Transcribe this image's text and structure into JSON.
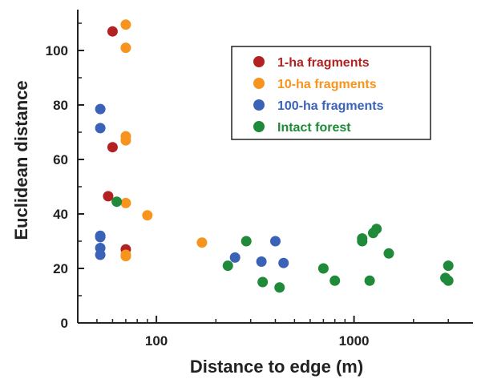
{
  "chart_data": {
    "type": "scatter",
    "title": "",
    "xlabel": "Distance to edge (m)",
    "ylabel": "Euclidean distance",
    "x_scale": "log",
    "xlim": [
      40,
      4000
    ],
    "ylim": [
      0,
      115
    ],
    "x_ticks": [
      100,
      1000
    ],
    "x_tick_labels": [
      "100",
      "1000"
    ],
    "y_ticks": [
      0,
      20,
      40,
      60,
      80,
      100
    ],
    "y_tick_labels": [
      "0",
      "20",
      "40",
      "60",
      "80",
      "100"
    ],
    "grid": false,
    "legend_position": "top-right",
    "series": [
      {
        "name": "1-ha fragments",
        "color": "#b22222",
        "points": [
          [
            60,
            107
          ],
          [
            60,
            64.5
          ],
          [
            57,
            46.5
          ],
          [
            70,
            27
          ]
        ]
      },
      {
        "name": "10-ha fragments",
        "color": "#f7941d",
        "points": [
          [
            70,
            109.5
          ],
          [
            70,
            101
          ],
          [
            70,
            68.5
          ],
          [
            70,
            67
          ],
          [
            70,
            44
          ],
          [
            90,
            39.5
          ],
          [
            70,
            25
          ],
          [
            70,
            24.5
          ],
          [
            170,
            29.5
          ]
        ]
      },
      {
        "name": "100-ha fragments",
        "color": "#3a63b8",
        "points": [
          [
            52,
            78.5
          ],
          [
            52,
            71.5
          ],
          [
            52,
            32
          ],
          [
            52,
            31.5
          ],
          [
            52,
            27.5
          ],
          [
            52,
            25
          ],
          [
            250,
            24
          ],
          [
            340,
            22.5
          ],
          [
            400,
            30
          ],
          [
            440,
            22
          ]
        ]
      },
      {
        "name": "Intact forest",
        "color": "#1f8a3a",
        "points": [
          [
            63,
            44.5
          ],
          [
            230,
            21
          ],
          [
            285,
            30
          ],
          [
            345,
            15
          ],
          [
            420,
            13
          ],
          [
            700,
            20
          ],
          [
            800,
            15.5
          ],
          [
            1100,
            31
          ],
          [
            1100,
            30
          ],
          [
            1200,
            15.5
          ],
          [
            1250,
            33
          ],
          [
            1300,
            34.5
          ],
          [
            1500,
            25.5
          ],
          [
            2900,
            16.5
          ],
          [
            3000,
            15.5
          ],
          [
            3000,
            21
          ]
        ]
      }
    ]
  }
}
